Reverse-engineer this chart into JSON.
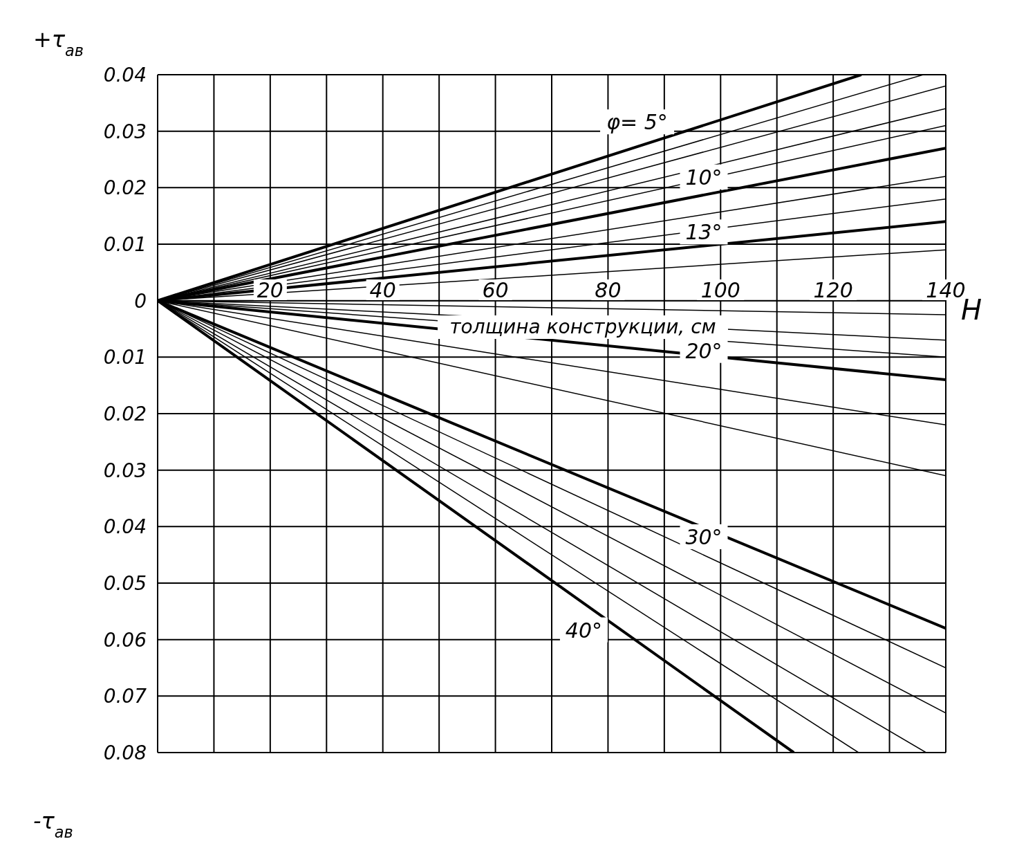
{
  "chart_data": {
    "type": "line",
    "ylabel": "+τ$_{ав}$",
    "xlabel": "толщина конструкции, см",
    "xlim": [
      0,
      140
    ],
    "ylim": [
      -0.08,
      0.04
    ],
    "xticks": [
      {
        "value": 0,
        "label": null
      },
      {
        "value": 10,
        "label": null
      },
      20,
      {
        "value": 30,
        "label": null
      },
      40,
      {
        "value": 50,
        "label": null
      },
      60,
      {
        "value": 70,
        "label": null
      },
      80,
      {
        "value": 90,
        "label": null
      },
      100,
      {
        "value": 110,
        "label": null
      },
      120,
      {
        "value": 130,
        "label": null
      },
      140
    ],
    "yticks": [
      {
        "value": -0.08,
        "label": "0.08"
      },
      {
        "value": -0.07,
        "label": "0.07"
      },
      {
        "value": -0.06,
        "label": "0.06"
      },
      {
        "value": -0.05,
        "label": "0.05"
      },
      {
        "value": -0.04,
        "label": "0.04"
      },
      {
        "value": -0.03,
        "label": "0.03"
      },
      {
        "value": -0.02,
        "label": "0.02"
      },
      {
        "value": -0.01,
        "label": "0.01"
      },
      0,
      0.01,
      0.02,
      0.03,
      0.04
    ],
    "grid": true,
    "marker": "none",
    "line_style": "solid",
    "series": [
      {
        "name": "φ= 5°",
        "color": "#000000",
        "x": [
          0,
          125
        ],
        "values": [
          0,
          0.04
        ]
      },
      {
        "color": "#000000",
        "x": [
          0,
          136
        ],
        "values": [
          0,
          0.04
        ]
      },
      {
        "color": "#000000",
        "x": [
          0,
          140
        ],
        "values": [
          0,
          0.038
        ]
      },
      {
        "color": "#000000",
        "x": [
          0,
          140
        ],
        "values": [
          0,
          0.034
        ]
      },
      {
        "color": "#000000",
        "x": [
          0,
          140
        ],
        "values": [
          0,
          0.031
        ]
      },
      {
        "name": "10°",
        "color": "#000000",
        "x": [
          0,
          140
        ],
        "values": [
          0,
          0.027
        ]
      },
      {
        "color": "#000000",
        "x": [
          0,
          140
        ],
        "values": [
          0,
          0.022
        ]
      },
      {
        "color": "#000000",
        "x": [
          0,
          140
        ],
        "values": [
          0,
          0.018
        ]
      },
      {
        "name": "13°",
        "color": "#000000",
        "x": [
          0,
          140
        ],
        "values": [
          0,
          0.014
        ]
      },
      {
        "color": "#000000",
        "x": [
          0,
          140
        ],
        "values": [
          0,
          0.009
        ]
      },
      {
        "color": "#000000",
        "x": [
          0,
          140
        ],
        "values": [
          0,
          0
        ]
      },
      {
        "color": "#000000",
        "x": [
          0,
          140
        ],
        "values": [
          0,
          -0.0025
        ]
      },
      {
        "color": "#000000",
        "x": [
          0,
          140
        ],
        "values": [
          0,
          -0.007
        ]
      },
      {
        "color": "#000000",
        "x": [
          0,
          140
        ],
        "values": [
          0,
          -0.01
        ]
      },
      {
        "name": "20°",
        "color": "#000000",
        "x": [
          0,
          140
        ],
        "values": [
          0,
          -0.014
        ]
      },
      {
        "color": "#000000",
        "x": [
          0,
          140
        ],
        "values": [
          0,
          -0.022
        ]
      },
      {
        "color": "#000000",
        "x": [
          0,
          140
        ],
        "values": [
          0,
          -0.031
        ]
      },
      {
        "name": "30°",
        "color": "#000000",
        "x": [
          0,
          140
        ],
        "values": [
          0,
          -0.058
        ]
      },
      {
        "color": "#000000",
        "x": [
          0,
          140
        ],
        "values": [
          0,
          -0.065
        ]
      },
      {
        "color": "#000000",
        "x": [
          0,
          140
        ],
        "values": [
          0,
          -0.073
        ]
      },
      {
        "color": "#000000",
        "x": [
          0,
          136.5
        ],
        "values": [
          0,
          -0.08
        ]
      },
      {
        "color": "#000000",
        "x": [
          0,
          124.5
        ],
        "values": [
          0,
          -0.08
        ]
      },
      {
        "name": "40°",
        "color": "#000000",
        "x": [
          0,
          113
        ],
        "values": [
          0,
          -0.08
        ]
      }
    ],
    "annotations": [
      "-τ$_{ав}$",
      "H"
    ]
  }
}
